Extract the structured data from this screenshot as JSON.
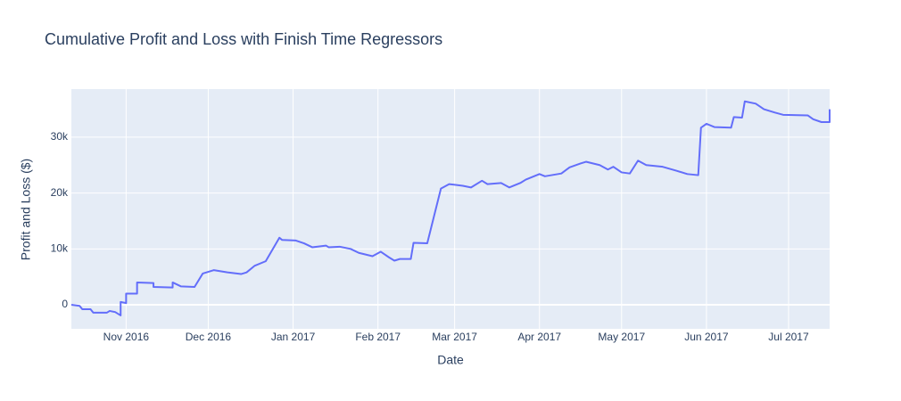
{
  "chart_data": {
    "type": "line",
    "title": "Cumulative Profit and Loss with Finish Time Regressors",
    "x_label": "Date",
    "y_label": "Profit and Loss ($)",
    "color": "#636efa",
    "grid": true,
    "xlim": [
      "2016-10-12",
      "2017-07-16"
    ],
    "xticks": [
      {
        "value": "2016-11-01",
        "label": "Nov 2016"
      },
      {
        "value": "2016-12-01",
        "label": "Dec 2016"
      },
      {
        "value": "2017-01-01",
        "label": "Jan 2017"
      },
      {
        "value": "2017-02-01",
        "label": "Feb 2017"
      },
      {
        "value": "2017-03-01",
        "label": "Mar 2017"
      },
      {
        "value": "2017-04-01",
        "label": "Apr 2017"
      },
      {
        "value": "2017-05-01",
        "label": "May 2017"
      },
      {
        "value": "2017-06-01",
        "label": "Jun 2017"
      },
      {
        "value": "2017-07-01",
        "label": "Jul 2017"
      }
    ],
    "ylim": [
      -4300,
      38600
    ],
    "yticks": [
      0,
      {
        "value": 10000,
        "label": "10k"
      },
      {
        "value": 20000,
        "label": "20k"
      },
      {
        "value": 30000,
        "label": "30k"
      }
    ],
    "x": [
      "2016-10-12",
      "2016-10-15",
      "2016-10-16",
      "2016-10-19",
      "2016-10-20",
      "2016-10-25",
      "2016-10-26",
      "2016-10-28",
      "2016-10-30",
      "2016-10-30",
      "2016-11-01",
      "2016-11-01",
      "2016-11-05",
      "2016-11-05",
      "2016-11-11",
      "2016-11-11",
      "2016-11-18",
      "2016-11-18",
      "2016-11-21",
      "2016-11-26",
      "2016-11-29",
      "2016-12-03",
      "2016-12-08",
      "2016-12-13",
      "2016-12-15",
      "2016-12-18",
      "2016-12-22",
      "2016-12-27",
      "2016-12-28",
      "2017-01-02",
      "2017-01-05",
      "2017-01-08",
      "2017-01-13",
      "2017-01-14",
      "2017-01-18",
      "2017-01-22",
      "2017-01-25",
      "2017-01-30",
      "2017-02-02",
      "2017-02-05",
      "2017-02-07",
      "2017-02-09",
      "2017-02-13",
      "2017-02-14",
      "2017-02-19",
      "2017-02-24",
      "2017-02-27",
      "2017-03-04",
      "2017-03-07",
      "2017-03-11",
      "2017-03-13",
      "2017-03-18",
      "2017-03-21",
      "2017-03-25",
      "2017-03-27",
      "2017-04-01",
      "2017-04-03",
      "2017-04-09",
      "2017-04-12",
      "2017-04-16",
      "2017-04-18",
      "2017-04-23",
      "2017-04-26",
      "2017-04-28",
      "2017-05-01",
      "2017-05-04",
      "2017-05-07",
      "2017-05-10",
      "2017-05-16",
      "2017-05-21",
      "2017-05-25",
      "2017-05-29",
      "2017-05-30",
      "2017-06-01",
      "2017-06-04",
      "2017-06-10",
      "2017-06-11",
      "2017-06-14",
      "2017-06-15",
      "2017-06-19",
      "2017-06-22",
      "2017-06-26",
      "2017-06-29",
      "2017-07-08",
      "2017-07-10",
      "2017-07-13",
      "2017-07-16",
      "2017-07-16"
    ],
    "values": [
      0,
      -200,
      -800,
      -800,
      -1400,
      -1400,
      -1100,
      -1300,
      -1900,
      500,
      300,
      2000,
      2000,
      4000,
      3900,
      3200,
      3100,
      4000,
      3300,
      3200,
      5600,
      6200,
      5800,
      5500,
      5800,
      7000,
      7800,
      12000,
      11600,
      11500,
      11000,
      10300,
      10600,
      10300,
      10400,
      10000,
      9300,
      8700,
      9500,
      8500,
      7900,
      8200,
      8200,
      11100,
      11000,
      20800,
      21600,
      21300,
      21000,
      22200,
      21600,
      21800,
      21000,
      21800,
      22400,
      23400,
      23000,
      23500,
      24600,
      25300,
      25600,
      25000,
      24200,
      24700,
      23700,
      23500,
      25800,
      25000,
      24700,
      24000,
      23400,
      23200,
      31700,
      32400,
      31800,
      31700,
      33600,
      33500,
      36400,
      36000,
      35000,
      34400,
      34000,
      33900,
      33200,
      32700,
      32700,
      35000
    ]
  }
}
